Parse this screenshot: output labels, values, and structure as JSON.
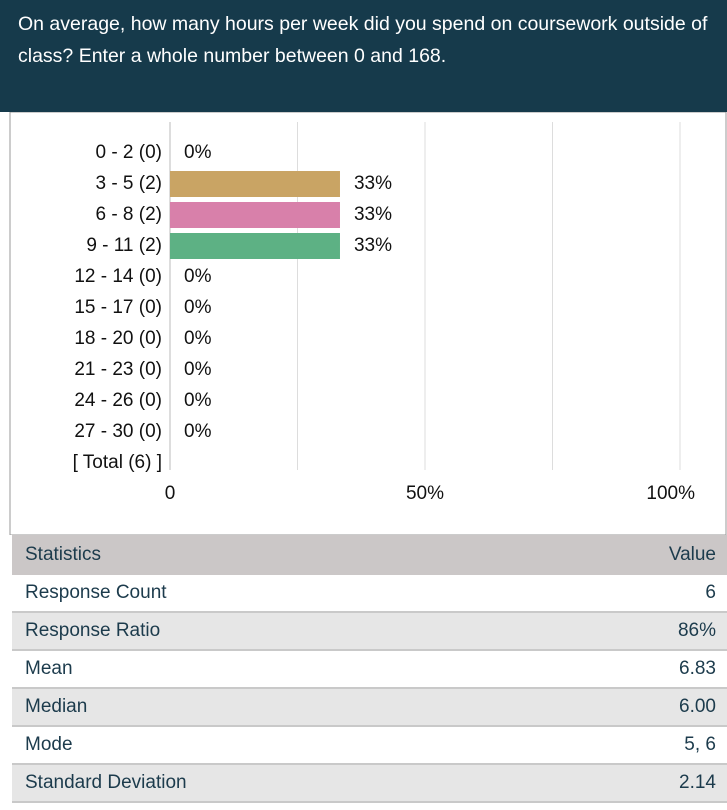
{
  "question": "On average, how many hours per week did you spend on coursework outside of class? Enter a whole number between 0 and 168.",
  "chart_data": {
    "type": "bar",
    "orientation": "horizontal",
    "categories": [
      "0 - 2 (0)",
      "3 - 5 (2)",
      "6 - 8 (2)",
      "9 - 11 (2)",
      "12 - 14 (0)",
      "15 - 17 (0)",
      "18 - 20 (0)",
      "21 - 23 (0)",
      "24 - 26 (0)",
      "27 - 30 (0)",
      "[ Total (6) ]"
    ],
    "values": [
      0,
      33.33,
      33.33,
      33.33,
      0,
      0,
      0,
      0,
      0,
      0,
      null
    ],
    "value_labels": [
      "0%",
      "33%",
      "33%",
      "33%",
      "0%",
      "0%",
      "0%",
      "0%",
      "0%",
      "0%",
      null
    ],
    "colors": [
      null,
      "#c9a464",
      "#d880aa",
      "#5db184",
      null,
      null,
      null,
      null,
      null,
      null,
      null
    ],
    "xlim": [
      0,
      100
    ],
    "xticks": [
      0,
      {
        "value": 50,
        "label": "50%"
      },
      {
        "value": 100,
        "label": "100%"
      }
    ],
    "minor_xticks": [
      25,
      75
    ],
    "grid": true
  },
  "table": {
    "header": [
      "Statistics",
      "Value"
    ],
    "rows": [
      [
        "Response Count",
        "6"
      ],
      [
        "Response Ratio",
        "86%"
      ],
      [
        "Mean",
        "6.83"
      ],
      [
        "Median",
        "6.00"
      ],
      [
        "Mode",
        "5, 6"
      ],
      [
        "Standard Deviation",
        "2.14"
      ]
    ]
  }
}
